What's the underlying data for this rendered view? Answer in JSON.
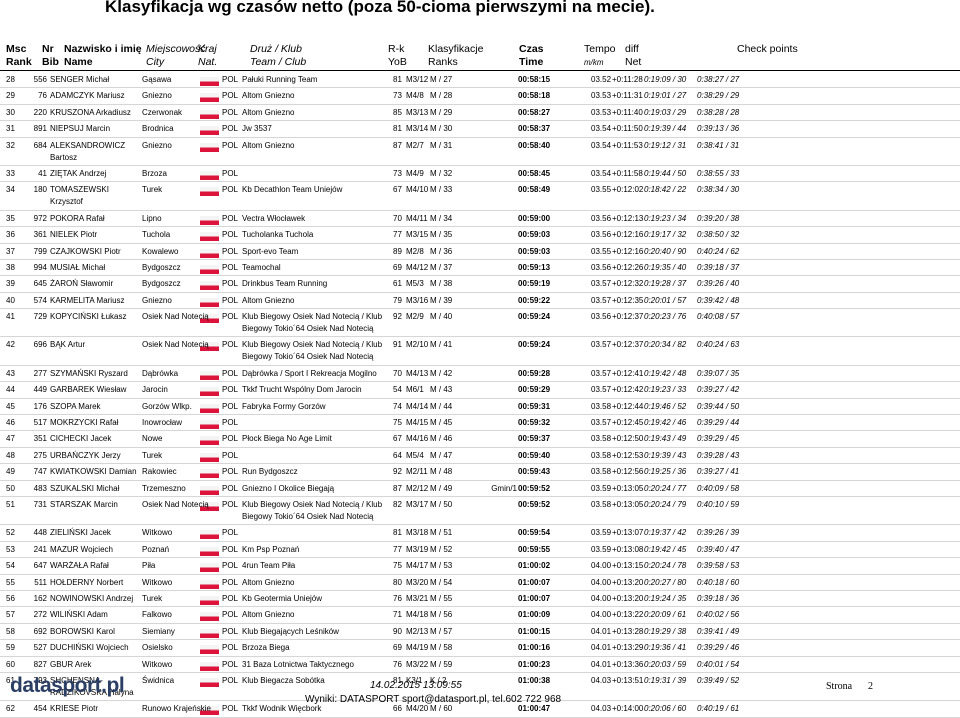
{
  "title": "Klasyfikacja wg czasów netto (poza 50-cioma pierwszymi na mecie).",
  "header": {
    "rank": {
      "l1": "Msc",
      "l2": "Rank"
    },
    "bib": {
      "l1": "Nr",
      "l2": "Bib"
    },
    "name": {
      "l1": "Nazwisko i imię",
      "l2": "Name"
    },
    "city": {
      "l1": "Miejscowość",
      "l2": "City"
    },
    "nat": {
      "l1": "Kraj",
      "l2": "Nat."
    },
    "team": {
      "l1": "Druż / Klub",
      "l2": "Team / Club"
    },
    "yob": {
      "l1": "R-k",
      "l2": "YoB"
    },
    "ranks": {
      "l1": "Klasyfikacje",
      "l2": "Ranks"
    },
    "time": {
      "l1": "Czas",
      "l2": "Time"
    },
    "pace": {
      "l1": "Tempo",
      "l2": "m/km"
    },
    "diff": {
      "l1": "diff",
      "l2": "Net"
    },
    "check": {
      "l1": "Check points"
    }
  },
  "rows": [
    {
      "rank": "28",
      "bib": "556",
      "name": "SENGER Michał",
      "city": "Gąsawa",
      "nat": "POL",
      "team": "Pałuki Running Team",
      "yob": "81",
      "cat": "M3/12",
      "rk": "M / 27",
      "time": "00:58:15",
      "pace": "03.52",
      "diff": "+0:11:28",
      "cp1": "0:19:09 / 30",
      "cp2": "0:38:27 / 27"
    },
    {
      "rank": "29",
      "bib": "76",
      "name": "ADAMCZYK Mariusz",
      "city": "Gniezno",
      "nat": "POL",
      "team": "Altom Gniezno",
      "yob": "73",
      "cat": "M4/8",
      "rk": "M / 28",
      "time": "00:58:18",
      "pace": "03.53",
      "diff": "+0:11:31",
      "cp1": "0:19:01 / 27",
      "cp2": "0:38:29 / 29"
    },
    {
      "rank": "30",
      "bib": "220",
      "name": "KRUSZONA Arkadiusz",
      "city": "Czerwonak",
      "nat": "POL",
      "team": "Altom Gniezno",
      "yob": "85",
      "cat": "M3/13",
      "rk": "M / 29",
      "time": "00:58:27",
      "pace": "03.53",
      "diff": "+0:11:40",
      "cp1": "0:19:03 / 29",
      "cp2": "0:38:28 / 28"
    },
    {
      "rank": "31",
      "bib": "891",
      "name": "NIEPSUJ Marcin",
      "city": "Brodnica",
      "nat": "POL",
      "team": "Jw 3537",
      "yob": "81",
      "cat": "M3/14",
      "rk": "M / 30",
      "time": "00:58:37",
      "pace": "03.54",
      "diff": "+0:11:50",
      "cp1": "0:19:39 / 44",
      "cp2": "0:39:13 / 36"
    },
    {
      "rank": "32",
      "bib": "684",
      "name": "ALEKSANDROWICZ Bartosz",
      "city": "Gniezno",
      "nat": "POL",
      "team": "Altom Gniezno",
      "yob": "87",
      "cat": "M2/7",
      "rk": "M / 31",
      "time": "00:58:40",
      "pace": "03.54",
      "diff": "+0:11:53",
      "cp1": "0:19:12 / 31",
      "cp2": "0:38:41 / 31"
    },
    {
      "rank": "33",
      "bib": "41",
      "name": "ZIĘTAK Andrzej",
      "city": "Brzoza",
      "nat": "POL",
      "yob": "73",
      "cat": "M4/9",
      "rk": "M / 32",
      "time": "00:58:45",
      "pace": "03.54",
      "diff": "+0:11:58",
      "cp1": "0:19:44 / 50",
      "cp2": "0:38:55 / 33"
    },
    {
      "rank": "34",
      "bib": "180",
      "name": "TOMASZEWSKI Krzysztof",
      "city": "Turek",
      "nat": "POL",
      "team": "Kb Decathlon Team Uniejów",
      "yob": "67",
      "cat": "M4/10",
      "rk": "M / 33",
      "time": "00:58:49",
      "pace": "03.55",
      "diff": "+0:12:02",
      "cp1": "0:18:42 / 22",
      "cp2": "0:38:34 / 30"
    },
    {
      "rank": "35",
      "bib": "972",
      "name": "POKORA Rafał",
      "city": "Lipno",
      "nat": "POL",
      "team": "Vectra Włocławek",
      "yob": "70",
      "cat": "M4/11",
      "rk": "M / 34",
      "time": "00:59:00",
      "pace": "03.56",
      "diff": "+0:12:13",
      "cp1": "0:19:23 / 34",
      "cp2": "0:39:20 / 38"
    },
    {
      "rank": "36",
      "bib": "361",
      "name": "NIELEK Piotr",
      "city": "Tuchola",
      "nat": "POL",
      "team": "Tucholanka Tuchola",
      "yob": "77",
      "cat": "M3/15",
      "rk": "M / 35",
      "time": "00:59:03",
      "pace": "03.56",
      "diff": "+0:12:16",
      "cp1": "0:19:17 / 32",
      "cp2": "0:38:50 / 32"
    },
    {
      "rank": "37",
      "bib": "799",
      "name": "CZAJKOWSKI Piotr",
      "city": "Kowalewo",
      "nat": "POL",
      "team": "Sport-evo Team",
      "yob": "89",
      "cat": "M2/8",
      "rk": "M / 36",
      "time": "00:59:03",
      "pace": "03.55",
      "diff": "+0:12:16",
      "cp1": "0:20:40 / 90",
      "cp2": "0:40:24 / 62"
    },
    {
      "rank": "38",
      "bib": "994",
      "name": "MUSIAŁ Michał",
      "city": "Bydgoszcz",
      "nat": "POL",
      "team": "Teamochal",
      "yob": "69",
      "cat": "M4/12",
      "rk": "M / 37",
      "time": "00:59:13",
      "pace": "03.56",
      "diff": "+0:12:26",
      "cp1": "0:19:35 / 40",
      "cp2": "0:39:18 / 37"
    },
    {
      "rank": "39",
      "bib": "645",
      "name": "ŻAROŃ Sławomir",
      "city": "Bydgoszcz",
      "nat": "POL",
      "team": "Drinkbus Team Running",
      "yob": "61",
      "cat": "M5/3",
      "rk": "M / 38",
      "time": "00:59:19",
      "pace": "03.57",
      "diff": "+0:12:32",
      "cp1": "0:19:28 / 37",
      "cp2": "0:39:26 / 40"
    },
    {
      "rank": "40",
      "bib": "574",
      "name": "KARMELITA Mariusz",
      "city": "Gniezno",
      "nat": "POL",
      "team": "Altom Gniezno",
      "yob": "79",
      "cat": "M3/16",
      "rk": "M / 39",
      "time": "00:59:22",
      "pace": "03.57",
      "diff": "+0:12:35",
      "cp1": "0:20:01 / 57",
      "cp2": "0:39:42 / 48"
    },
    {
      "rank": "41",
      "bib": "729",
      "name": "KOPYCIŃSKI Łukasz",
      "city": "Osiek Nad Notecią",
      "nat": "POL",
      "team": "Klub Biegowy Osiek Nad Notecią / Klub Biegowy Tokio´64 Osiek Nad Notecią",
      "yob": "92",
      "cat": "M2/9",
      "rk": "M / 40",
      "time": "00:59:24",
      "pace": "03.56",
      "diff": "+0:12:37",
      "cp1": "0:20:23 / 76",
      "cp2": "0:40:08 / 57"
    },
    {
      "rank": "42",
      "bib": "696",
      "name": "BĄK Artur",
      "city": "Osiek Nad Notecią",
      "nat": "POL",
      "team": "Klub Biegowy Osiek Nad Notecią / Klub Biegowy Tokio´64 Osiek Nad Notecią",
      "yob": "91",
      "cat": "M2/10",
      "rk": "M / 41",
      "time": "00:59:24",
      "pace": "03.57",
      "diff": "+0:12:37",
      "cp1": "0:20:34 / 82",
      "cp2": "0:40:24 / 63"
    },
    {
      "rank": "43",
      "bib": "277",
      "name": "SZYMAŃSKI Ryszard",
      "city": "Dąbrówka",
      "nat": "POL",
      "team": "Dąbrówka / Sport I Rekreacja Mogilno",
      "yob": "70",
      "cat": "M4/13",
      "rk": "M / 42",
      "time": "00:59:28",
      "pace": "03.57",
      "diff": "+0:12:41",
      "cp1": "0:19:42 / 48",
      "cp2": "0:39:07 / 35"
    },
    {
      "rank": "44",
      "bib": "449",
      "name": "GARBAREK Wiesław",
      "city": "Jarocin",
      "nat": "POL",
      "team": "Tkkf Trucht Wspólny Dom Jarocin",
      "yob": "54",
      "cat": "M6/1",
      "rk": "M / 43",
      "time": "00:59:29",
      "pace": "03.57",
      "diff": "+0:12:42",
      "cp1": "0:19:23 / 33",
      "cp2": "0:39:27 / 42"
    },
    {
      "rank": "45",
      "bib": "176",
      "name": "SZOPA Marek",
      "city": "Gorzów Wlkp.",
      "nat": "POL",
      "team": "Fabryka Formy Gorzów",
      "yob": "74",
      "cat": "M4/14",
      "rk": "M / 44",
      "time": "00:59:31",
      "pace": "03.58",
      "diff": "+0:12:44",
      "cp1": "0:19:46 / 52",
      "cp2": "0:39:44 / 50"
    },
    {
      "rank": "46",
      "bib": "517",
      "name": "MOKRZYCKI Rafał",
      "city": "Inowrocław",
      "nat": "POL",
      "yob": "75",
      "cat": "M4/15",
      "rk": "M / 45",
      "time": "00:59:32",
      "pace": "03.57",
      "diff": "+0:12:45",
      "cp1": "0:19:42 / 46",
      "cp2": "0:39:29 / 44"
    },
    {
      "rank": "47",
      "bib": "351",
      "name": "CICHECKI Jacek",
      "city": "Nowe",
      "nat": "POL",
      "team": "Płock Biega No Age Limit",
      "yob": "67",
      "cat": "M4/16",
      "rk": "M / 46",
      "time": "00:59:37",
      "pace": "03.58",
      "diff": "+0:12:50",
      "cp1": "0:19:43 / 49",
      "cp2": "0:39:29 / 45"
    },
    {
      "rank": "48",
      "bib": "275",
      "name": "URBAŃCZYK Jerzy",
      "city": "Turek",
      "nat": "POL",
      "yob": "64",
      "cat": "M5/4",
      "rk": "M / 47",
      "time": "00:59:40",
      "pace": "03.58",
      "diff": "+0:12:53",
      "cp1": "0:19:39 / 43",
      "cp2": "0:39:28 / 43"
    },
    {
      "rank": "49",
      "bib": "747",
      "name": "KWIATKOWSKI Damian",
      "city": "Rakowiec",
      "nat": "POL",
      "team": "Run Bydgoszcz",
      "yob": "92",
      "cat": "M2/11",
      "rk": "M / 48",
      "time": "00:59:43",
      "pace": "03.58",
      "diff": "+0:12:56",
      "cp1": "0:19:25 / 36",
      "cp2": "0:39:27 / 41"
    },
    {
      "rank": "50",
      "bib": "483",
      "name": "SZUKALSKI Michał",
      "city": "Trzemeszno",
      "nat": "POL",
      "team": "Gniezno I Okolice Biegają",
      "yob": "87",
      "cat": "M2/12",
      "rk": "M / 49",
      "extra": "Gmin/1",
      "time": "00:59:52",
      "pace": "03.59",
      "diff": "+0:13:05",
      "cp1": "0:20:24 / 77",
      "cp2": "0:40:09 / 58"
    },
    {
      "rank": "51",
      "bib": "731",
      "name": "STARSZAK Marcin",
      "city": "Osiek Nad Notecią",
      "nat": "POL",
      "team": "Klub Biegowy Osiek Nad Notecią / Klub Biegowy Tokio´64 Osiek Nad Notecią",
      "yob": "82",
      "cat": "M3/17",
      "rk": "M / 50",
      "time": "00:59:52",
      "pace": "03.58",
      "diff": "+0:13:05",
      "cp1": "0:20:24 / 79",
      "cp2": "0:40:10 / 59"
    },
    {
      "rank": "52",
      "bib": "448",
      "name": "ZIELIŃSKI Jacek",
      "city": "Witkowo",
      "nat": "POL",
      "yob": "81",
      "cat": "M3/18",
      "rk": "M / 51",
      "time": "00:59:54",
      "pace": "03.59",
      "diff": "+0:13:07",
      "cp1": "0:19:37 / 42",
      "cp2": "0:39:26 / 39"
    },
    {
      "rank": "53",
      "bib": "241",
      "name": "MAZUR Wojciech",
      "city": "Poznań",
      "nat": "POL",
      "team": "Km Psp Poznań",
      "yob": "77",
      "cat": "M3/19",
      "rk": "M / 52",
      "time": "00:59:55",
      "pace": "03.59",
      "diff": "+0:13:08",
      "cp1": "0:19:42 / 45",
      "cp2": "0:39:40 / 47"
    },
    {
      "rank": "54",
      "bib": "647",
      "name": "WARŻAŁA Rafał",
      "city": "Piła",
      "nat": "POL",
      "team": "4run Team Piła",
      "yob": "75",
      "cat": "M4/17",
      "rk": "M / 53",
      "time": "01:00:02",
      "pace": "04.00",
      "diff": "+0:13:15",
      "cp1": "0:20:24 / 78",
      "cp2": "0:39:58 / 53"
    },
    {
      "rank": "55",
      "bib": "511",
      "name": "HOŁDERNY Norbert",
      "city": "Witkowo",
      "nat": "POL",
      "team": "Altom Gniezno",
      "yob": "80",
      "cat": "M3/20",
      "rk": "M / 54",
      "time": "01:00:07",
      "pace": "04.00",
      "diff": "+0:13:20",
      "cp1": "0:20:27 / 80",
      "cp2": "0:40:18 / 60"
    },
    {
      "rank": "56",
      "bib": "162",
      "name": "NOWINOWSKI Andrzej",
      "city": "Turek",
      "nat": "POL",
      "team": "Kb Geotermia Uniejów",
      "yob": "76",
      "cat": "M3/21",
      "rk": "M / 55",
      "time": "01:00:07",
      "pace": "04.00",
      "diff": "+0:13:20",
      "cp1": "0:19:24 / 35",
      "cp2": "0:39:18 / 36"
    },
    {
      "rank": "57",
      "bib": "272",
      "name": "WILIŃSKI Adam",
      "city": "Falkowo",
      "nat": "POL",
      "team": "Altom Gniezno",
      "yob": "71",
      "cat": "M4/18",
      "rk": "M / 56",
      "time": "01:00:09",
      "pace": "04.00",
      "diff": "+0:13:22",
      "cp1": "0:20:09 / 61",
      "cp2": "0:40:02 / 56"
    },
    {
      "rank": "58",
      "bib": "692",
      "name": "BOROWSKI Karol",
      "city": "Siemiany",
      "nat": "POL",
      "team": "Klub Biegających Leśników",
      "yob": "90",
      "cat": "M2/13",
      "rk": "M / 57",
      "time": "01:00:15",
      "pace": "04.01",
      "diff": "+0:13:28",
      "cp1": "0:19:29 / 38",
      "cp2": "0:39:41 / 49"
    },
    {
      "rank": "59",
      "bib": "527",
      "name": "DUCHIŃSKI Wojciech",
      "city": "Osielsko",
      "nat": "POL",
      "team": "Brzoza Biega",
      "yob": "69",
      "cat": "M4/19",
      "rk": "M / 58",
      "time": "01:00:16",
      "pace": "04.01",
      "diff": "+0:13:29",
      "cp1": "0:19:36 / 41",
      "cp2": "0:39:29 / 46"
    },
    {
      "rank": "60",
      "bib": "827",
      "name": "GBUR Arek",
      "city": "Witkowo",
      "nat": "POL",
      "team": "31 Baza Lotnictwa Taktycznego",
      "yob": "76",
      "cat": "M3/22",
      "rk": "M / 59",
      "time": "01:00:23",
      "pace": "04.01",
      "diff": "+0:13:36",
      "cp1": "0:20:03 / 59",
      "cp2": "0:40:01 / 54"
    },
    {
      "rank": "61",
      "bib": "793",
      "name": "SHCHENSNA-RADZIKOVSKA Halyna",
      "city": "Świdnica",
      "nat": "POL",
      "team": "Klub Biegacza Sobótka",
      "yob": "81",
      "cat": "K3/1",
      "rk": "K / 2",
      "time": "01:00:38",
      "pace": "04.03",
      "diff": "+0:13:51",
      "cp1": "0:19:31 / 39",
      "cp2": "0:39:49 / 52"
    },
    {
      "rank": "62",
      "bib": "454",
      "name": "KRIESE Piotr",
      "city": "Runowo Krajeńskie",
      "nat": "POL",
      "team": "Tkkf Wodnik Więcbork",
      "yob": "66",
      "cat": "M4/20",
      "rk": "M / 60",
      "time": "01:00:47",
      "pace": "04.03",
      "diff": "+0:14:00",
      "cp1": "0:20:06 / 60",
      "cp2": "0:40:19 / 61"
    }
  ],
  "footer": {
    "logo": "datasport.pl",
    "timestamp": "14.02.2015 13:09:55",
    "contact": "Wyniki: DATASPORT sport@datasport.pl, tel.602 722 968",
    "page_label": "Strona",
    "page_number": 2
  }
}
